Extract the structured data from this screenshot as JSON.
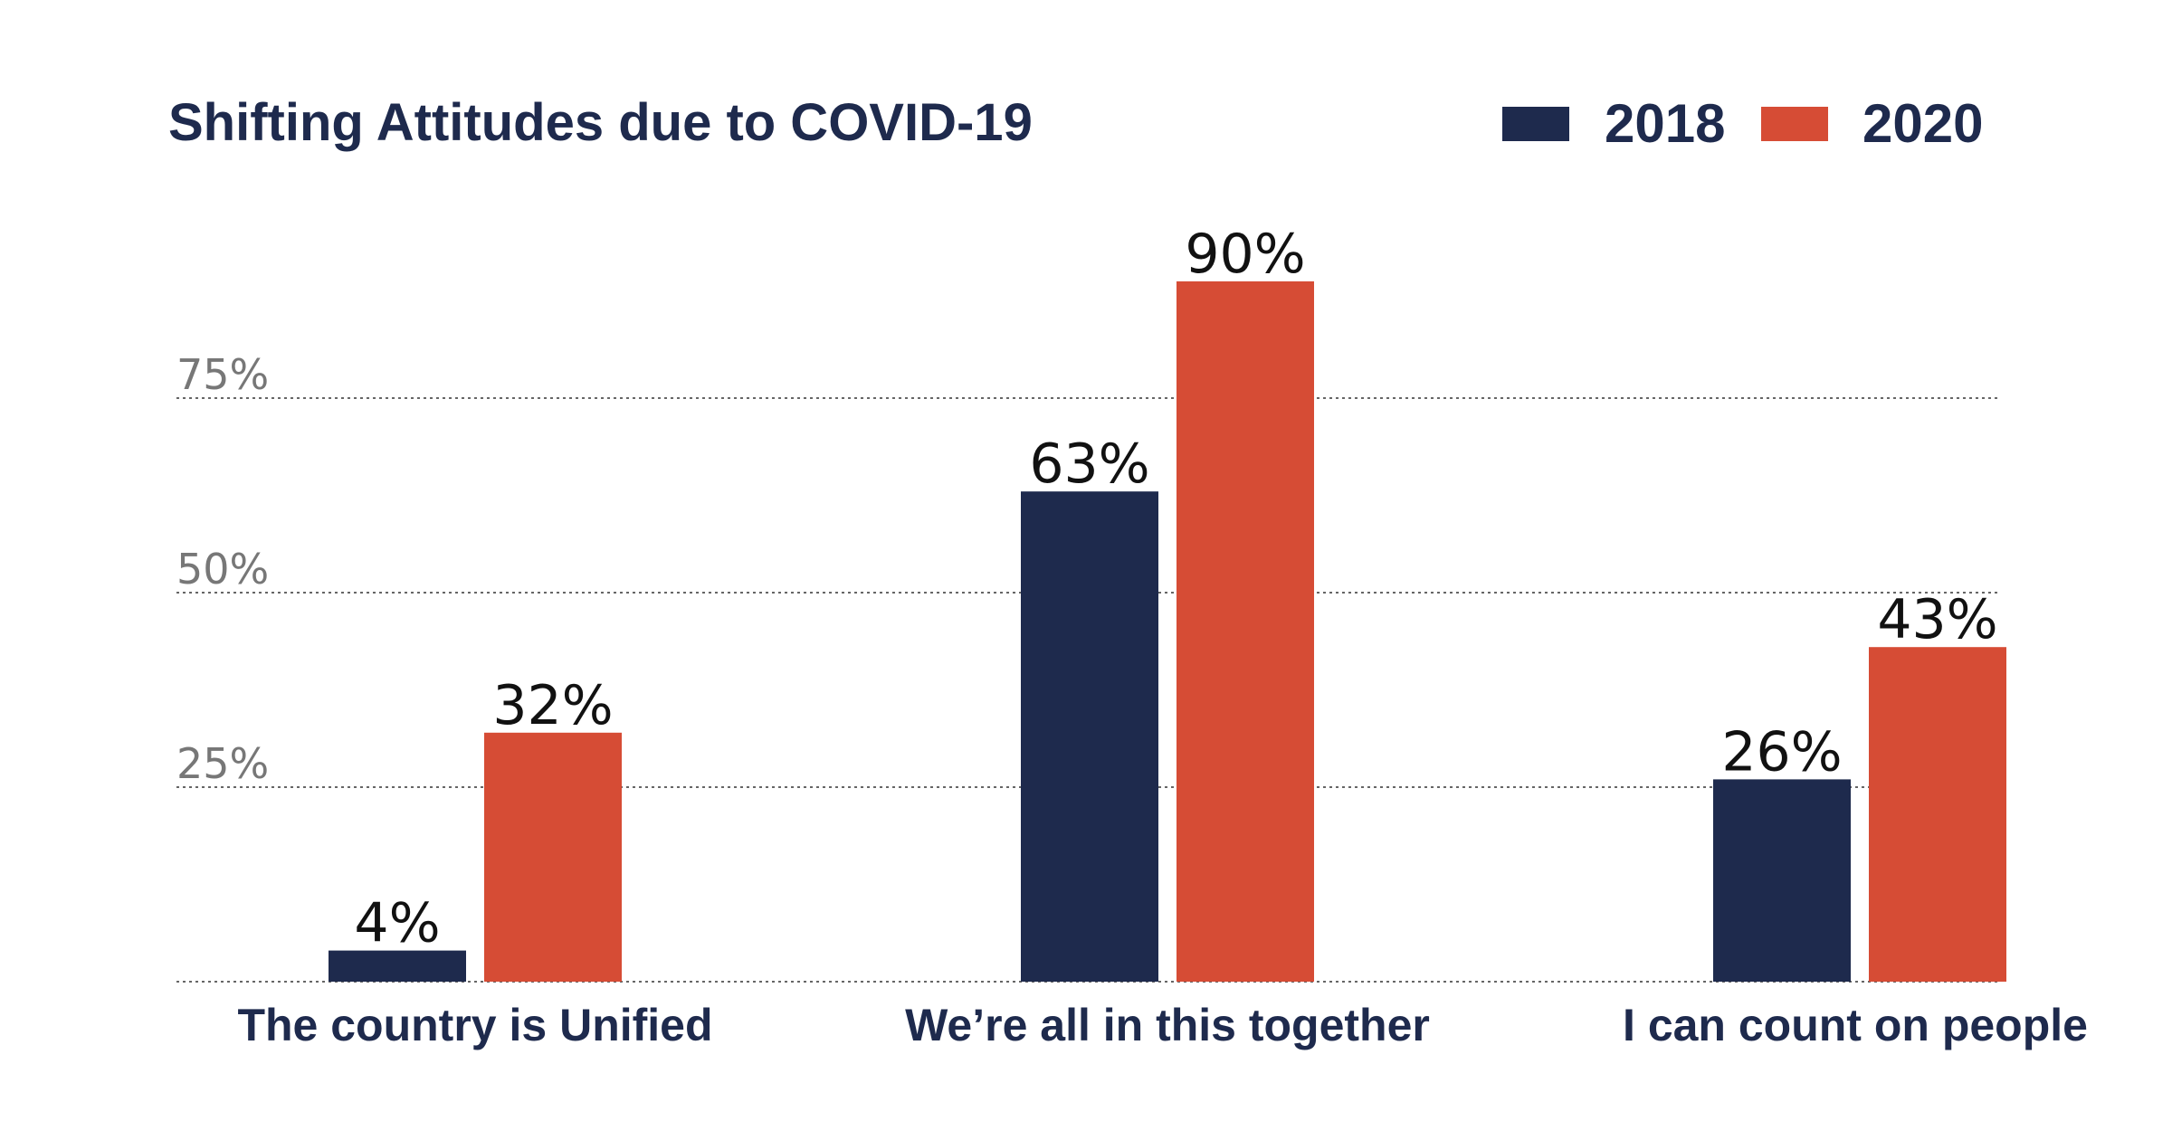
{
  "colors": {
    "title": "#1e2a4d",
    "series_2018": "#1e2a4d",
    "series_2020": "#d64c35",
    "tick_label": "#777777",
    "value_label": "#111111",
    "grid": "#666666"
  },
  "chart_data": {
    "type": "bar",
    "title": "Shifting Attitudes due to COVID-19",
    "categories": [
      "The country is Unified",
      "We’re all in this together",
      "I can count on people"
    ],
    "series": [
      {
        "name": "2018",
        "values": [
          4,
          63,
          26
        ],
        "labels": [
          "4%",
          "63%",
          "26%"
        ]
      },
      {
        "name": "2020",
        "values": [
          32,
          90,
          43
        ],
        "labels": [
          "32%",
          "90%",
          "43%"
        ]
      }
    ],
    "y_ticks": [
      {
        "value": 25,
        "label": "25%"
      },
      {
        "value": 50,
        "label": "50%"
      },
      {
        "value": 75,
        "label": "75%"
      }
    ],
    "ylim": [
      0,
      100
    ],
    "grid": true,
    "legend_position": "top-right",
    "xlabel": "",
    "ylabel": ""
  }
}
